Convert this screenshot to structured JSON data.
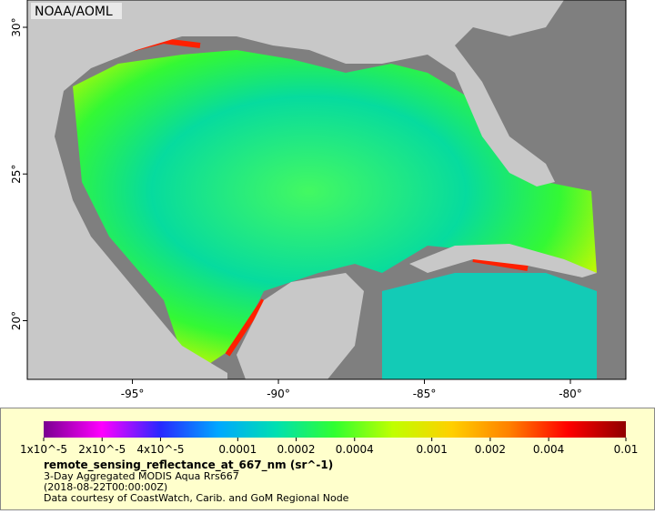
{
  "header": {
    "title": "NOAA/AOML"
  },
  "map": {
    "xlim": [
      -98.6,
      -78.1
    ],
    "ylim": [
      18.0,
      30.93
    ],
    "xticks": [
      {
        "value": -95,
        "label": "-95°"
      },
      {
        "value": -90,
        "label": "-90°"
      },
      {
        "value": -85,
        "label": "-85°"
      },
      {
        "value": -80,
        "label": "-80°"
      }
    ],
    "yticks": [
      {
        "value": 30,
        "label": "30°"
      },
      {
        "value": 25,
        "label": "25°"
      },
      {
        "value": 20,
        "label": "20°"
      }
    ]
  },
  "colorbar": {
    "scale": "log",
    "lim": [
      1e-05,
      0.01
    ],
    "colors": [
      "#7a0090",
      "#ff00ff",
      "#2828ff",
      "#00a8ff",
      "#00e0b0",
      "#30ff30",
      "#c0ff00",
      "#ffd000",
      "#ff8000",
      "#ff0000",
      "#900000"
    ],
    "ticks": [
      {
        "value": 1e-05,
        "label": "1x10^-5"
      },
      {
        "value": 2e-05,
        "label": "2x10^-5"
      },
      {
        "value": 4e-05,
        "label": "4x10^-5"
      },
      0.0001,
      0.0002,
      0.0004,
      0.001,
      0.002,
      0.004,
      0.01
    ]
  },
  "legend": {
    "variable": "remote_sensing_reflectance_at_667_nm (sr^-1)",
    "lines": [
      "3-Day Aggregated MODIS Aqua Rrs667",
      "(2018-08-22T00:00:00Z)",
      "Data courtesy of CoastWatch, Carib. and GoM Regional Node"
    ]
  }
}
